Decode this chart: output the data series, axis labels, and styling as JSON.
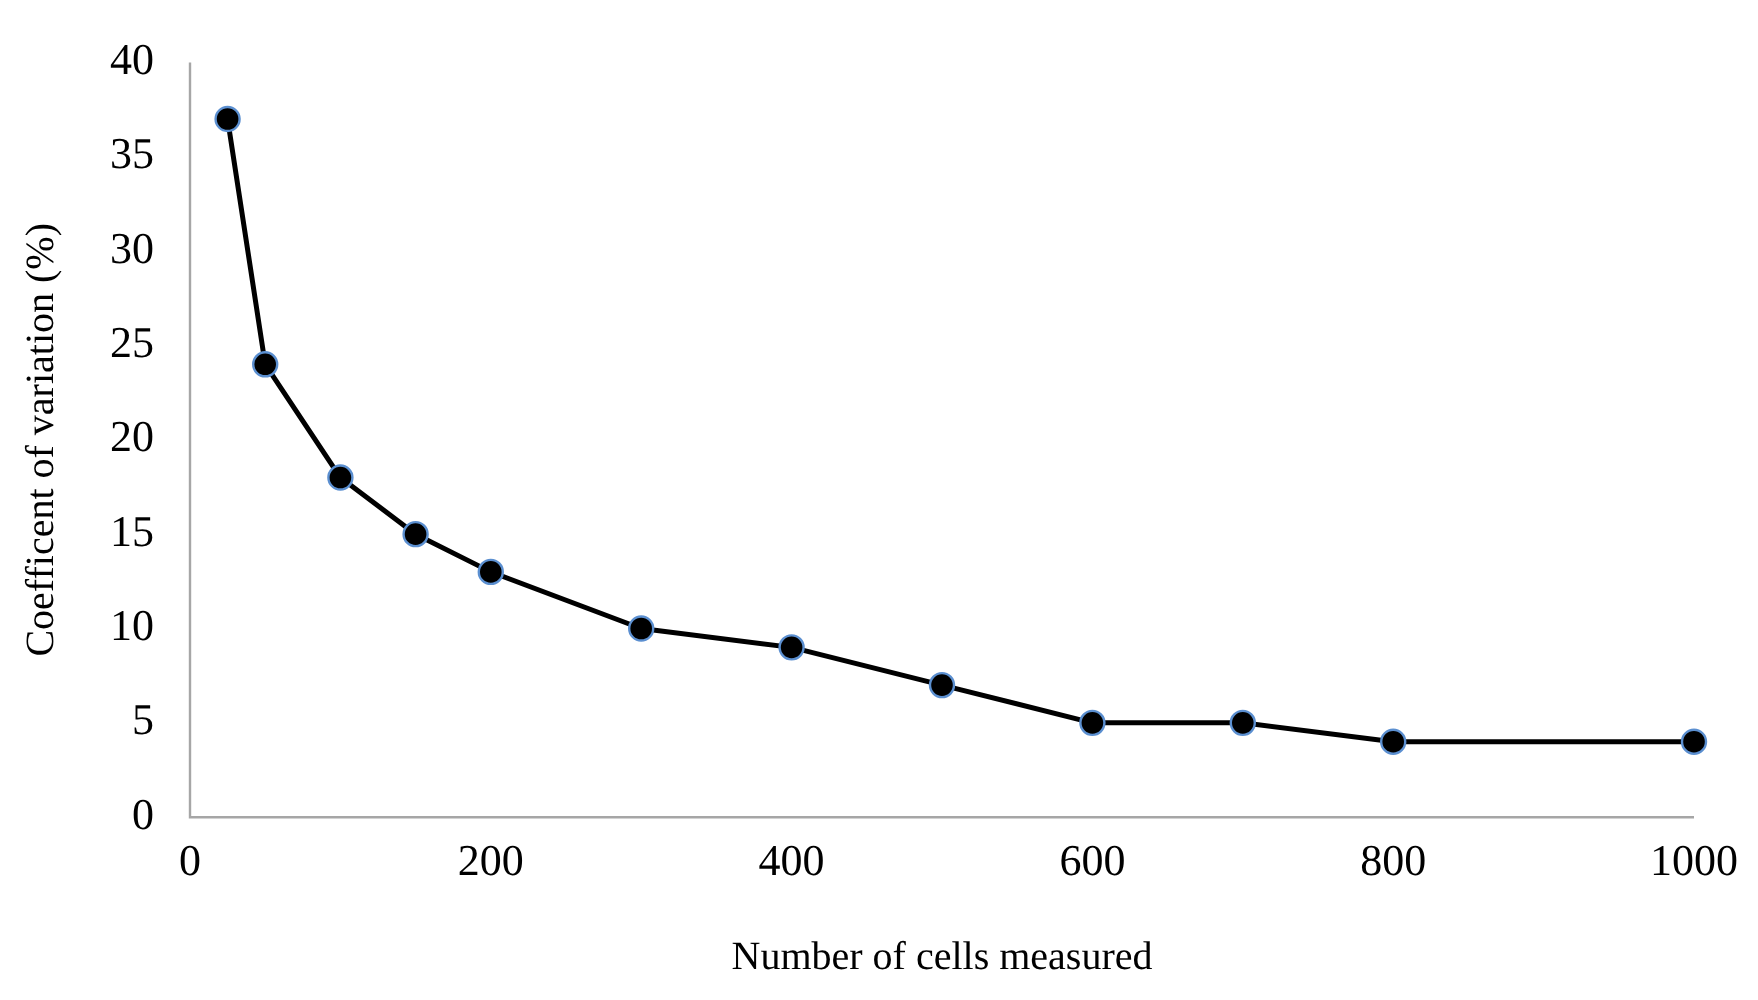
{
  "chart_data": {
    "type": "line",
    "xlabel": "Number of cells measured",
    "ylabel": "Coefficent of variation (%)",
    "x": [
      25,
      50,
      100,
      150,
      200,
      300,
      400,
      500,
      600,
      700,
      800,
      1000
    ],
    "series": [
      {
        "color": "#000000",
        "values": [
          37,
          24,
          18,
          15,
          13,
          10,
          9,
          7,
          5,
          5,
          4,
          4
        ]
      }
    ],
    "xlim": [
      0,
      1000
    ],
    "xticks": [
      0,
      200,
      400,
      600,
      800,
      1000
    ],
    "ylim": [
      0,
      40
    ],
    "yticks": [
      0,
      5,
      10,
      15,
      20,
      25,
      30,
      35,
      40
    ],
    "grid": false,
    "legend": false,
    "marker": "circle",
    "line_style": "solid"
  }
}
